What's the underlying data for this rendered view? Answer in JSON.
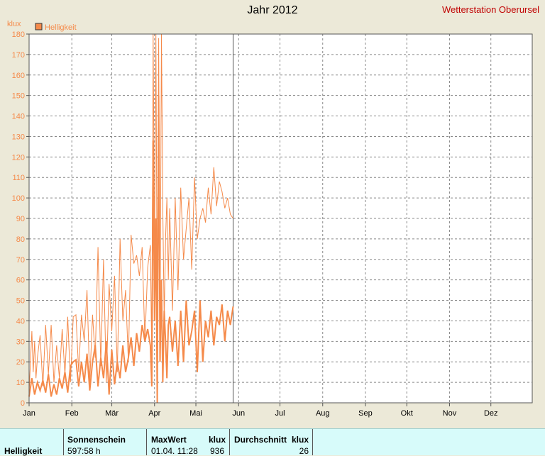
{
  "header": {
    "title": "Jahr 2012",
    "station": "Wetterstation Oberursel"
  },
  "chart_data": {
    "type": "line",
    "ylabel": "klux",
    "ylim": [
      0,
      180
    ],
    "yticks": [
      0,
      10,
      20,
      30,
      40,
      50,
      60,
      70,
      80,
      90,
      100,
      110,
      120,
      130,
      140,
      150,
      160,
      170,
      180
    ],
    "xlim": [
      0,
      365
    ],
    "months": [
      "Jan",
      "Feb",
      "Mär",
      "Apr",
      "Mai",
      "Jun",
      "Jul",
      "Aug",
      "Sep",
      "Okt",
      "Nov",
      "Dez"
    ],
    "month_starts": [
      0,
      31,
      60,
      91,
      121,
      152,
      182,
      213,
      244,
      274,
      305,
      335
    ],
    "current_day_marker": 148,
    "grid": true,
    "legend_position": "top-left",
    "series": [
      {
        "name": "Helligkeit",
        "color": "#f58a4a",
        "kind": "daily_max",
        "x": [
          0,
          2,
          3,
          4,
          5,
          6,
          8,
          10,
          12,
          14,
          16,
          18,
          20,
          22,
          24,
          26,
          28,
          30,
          32,
          34,
          36,
          38,
          40,
          42,
          44,
          46,
          48,
          50,
          52,
          54,
          56,
          58,
          60,
          62,
          64,
          66,
          68,
          70,
          72,
          74,
          76,
          78,
          80,
          82,
          84,
          86,
          88,
          89,
          90,
          91,
          92,
          93,
          94,
          95,
          96,
          97,
          98,
          99,
          100,
          101,
          102,
          104,
          106,
          108,
          110,
          112,
          114,
          116,
          118,
          120,
          122,
          124,
          126,
          128,
          130,
          132,
          134,
          136,
          138,
          140,
          142,
          144,
          146,
          148
        ],
        "values": [
          5,
          35,
          15,
          30,
          12,
          22,
          33,
          8,
          38,
          14,
          38,
          10,
          28,
          12,
          36,
          14,
          42,
          10,
          42,
          43,
          15,
          43,
          30,
          55,
          10,
          43,
          22,
          76,
          18,
          70,
          10,
          58,
          35,
          62,
          15,
          80,
          40,
          55,
          20,
          82,
          68,
          72,
          62,
          76,
          30,
          66,
          77,
          20,
          180,
          70,
          180,
          40,
          178,
          30,
          180,
          95,
          40,
          80,
          100,
          60,
          95,
          45,
          100,
          55,
          105,
          70,
          85,
          100,
          65,
          110,
          80,
          90,
          95,
          88,
          105,
          92,
          115,
          96,
          108,
          103,
          95,
          100,
          92,
          90
        ]
      },
      {
        "name": "Helligkeit",
        "color": "#f58a4a",
        "kind": "daily_mean",
        "x": [
          0,
          2,
          4,
          6,
          8,
          10,
          12,
          14,
          16,
          18,
          20,
          22,
          24,
          26,
          28,
          30,
          32,
          34,
          36,
          38,
          40,
          42,
          44,
          46,
          48,
          50,
          52,
          54,
          56,
          58,
          60,
          62,
          64,
          66,
          68,
          70,
          72,
          74,
          76,
          78,
          80,
          82,
          84,
          86,
          88,
          89,
          90,
          91,
          92,
          93,
          94,
          95,
          96,
          97,
          98,
          99,
          100,
          101,
          102,
          104,
          106,
          108,
          110,
          112,
          114,
          116,
          118,
          120,
          122,
          124,
          126,
          128,
          130,
          132,
          134,
          136,
          138,
          140,
          142,
          144,
          146,
          148
        ],
        "values": [
          3,
          12,
          4,
          10,
          6,
          11,
          5,
          14,
          3,
          9,
          4,
          12,
          7,
          15,
          5,
          18,
          20,
          21,
          8,
          20,
          10,
          24,
          6,
          20,
          28,
          8,
          22,
          12,
          30,
          4,
          26,
          9,
          20,
          12,
          28,
          15,
          22,
          32,
          18,
          34,
          25,
          38,
          30,
          36,
          28,
          8,
          128,
          40,
          90,
          0,
          150,
          20,
          60,
          10,
          45,
          30,
          12,
          38,
          42,
          25,
          40,
          18,
          45,
          20,
          50,
          28,
          35,
          45,
          15,
          50,
          20,
          40,
          32,
          45,
          28,
          42,
          38,
          48,
          30,
          45,
          38,
          47
        ]
      }
    ]
  },
  "footer": {
    "row_label": "Helligkeit",
    "sun_header": "Sonnenschein",
    "sun_value": "597:58 h",
    "max_header": "MaxWert",
    "max_unit": "klux",
    "max_time": "01.04.  11:28",
    "max_value": "936",
    "avg_header": "Durchschnitt",
    "avg_unit": "klux",
    "avg_value": "26"
  }
}
